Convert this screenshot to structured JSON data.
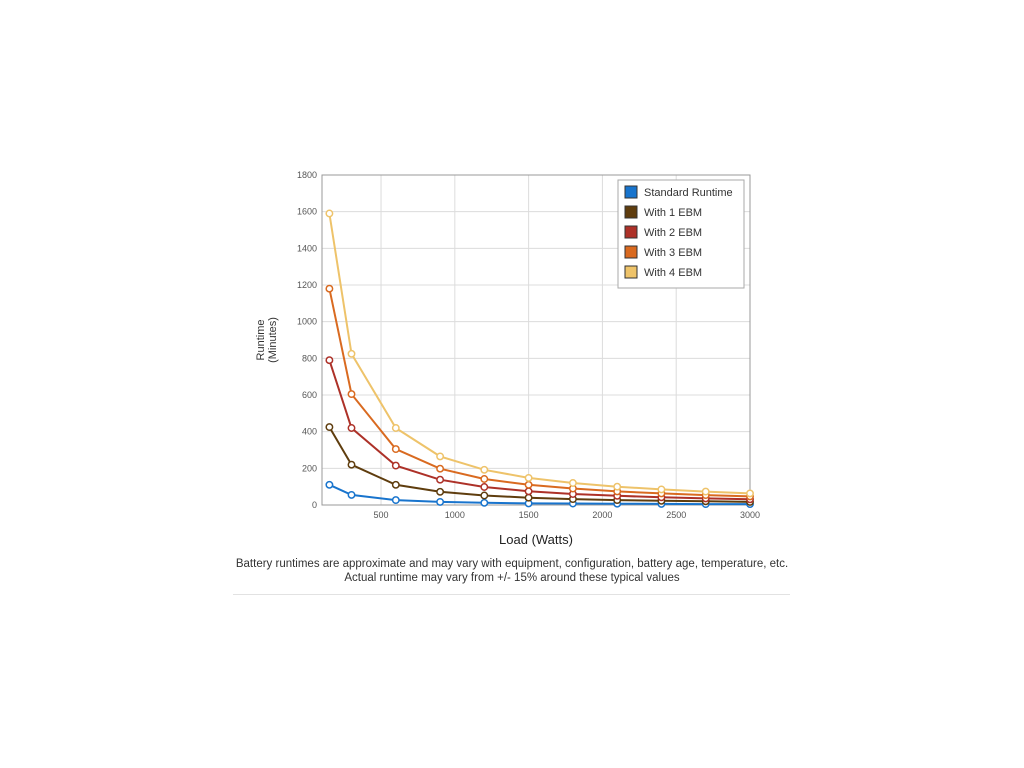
{
  "page": {
    "background": "#ffffff"
  },
  "chart_data": {
    "type": "line",
    "x": [
      150,
      300,
      600,
      900,
      1200,
      1500,
      1800,
      2100,
      2400,
      2700,
      3000
    ],
    "series": [
      {
        "name": "Standard Runtime",
        "color": "#1874cd",
        "values": [
          110,
          55,
          27,
          17,
          12,
          9,
          8,
          7,
          6,
          5,
          5
        ]
      },
      {
        "name": "With 1 EBM",
        "color": "#5f3d0e",
        "values": [
          425,
          220,
          110,
          72,
          52,
          40,
          32,
          27,
          23,
          20,
          17
        ]
      },
      {
        "name": "With 2 EBM",
        "color": "#ad3128",
        "values": [
          790,
          420,
          215,
          138,
          98,
          75,
          60,
          50,
          42,
          36,
          31
        ]
      },
      {
        "name": "With 3 EBM",
        "color": "#d96a20",
        "values": [
          1180,
          605,
          305,
          198,
          142,
          110,
          90,
          74,
          63,
          54,
          47
        ]
      },
      {
        "name": "With 4 EBM",
        "color": "#eec36a",
        "values": [
          1590,
          825,
          420,
          265,
          192,
          148,
          120,
          100,
          85,
          73,
          63
        ]
      }
    ],
    "title": "",
    "xlabel": "Load (Watts)",
    "ylabel": "Runtime (Minutes)",
    "ylabel_lines": [
      "Runtime",
      "(Minutes)"
    ],
    "x_range": [
      100,
      3000
    ],
    "y_range": [
      0,
      1800
    ],
    "x_ticks": [
      500,
      1000,
      1500,
      2000,
      2500,
      3000
    ],
    "y_ticks": [
      0,
      200,
      400,
      600,
      800,
      1000,
      1200,
      1400,
      1600,
      1800
    ],
    "grid": true,
    "legend_position": "top-right",
    "marker_fill": "#ffffff",
    "grid_color": "#dcdcdc",
    "border_color": "#999999"
  },
  "caption": {
    "line1": "Battery runtimes are approximate and may vary with equipment, configuration, battery age, temperature, etc.",
    "line2": "Actual runtime may vary from +/- 15% around these typical values"
  }
}
